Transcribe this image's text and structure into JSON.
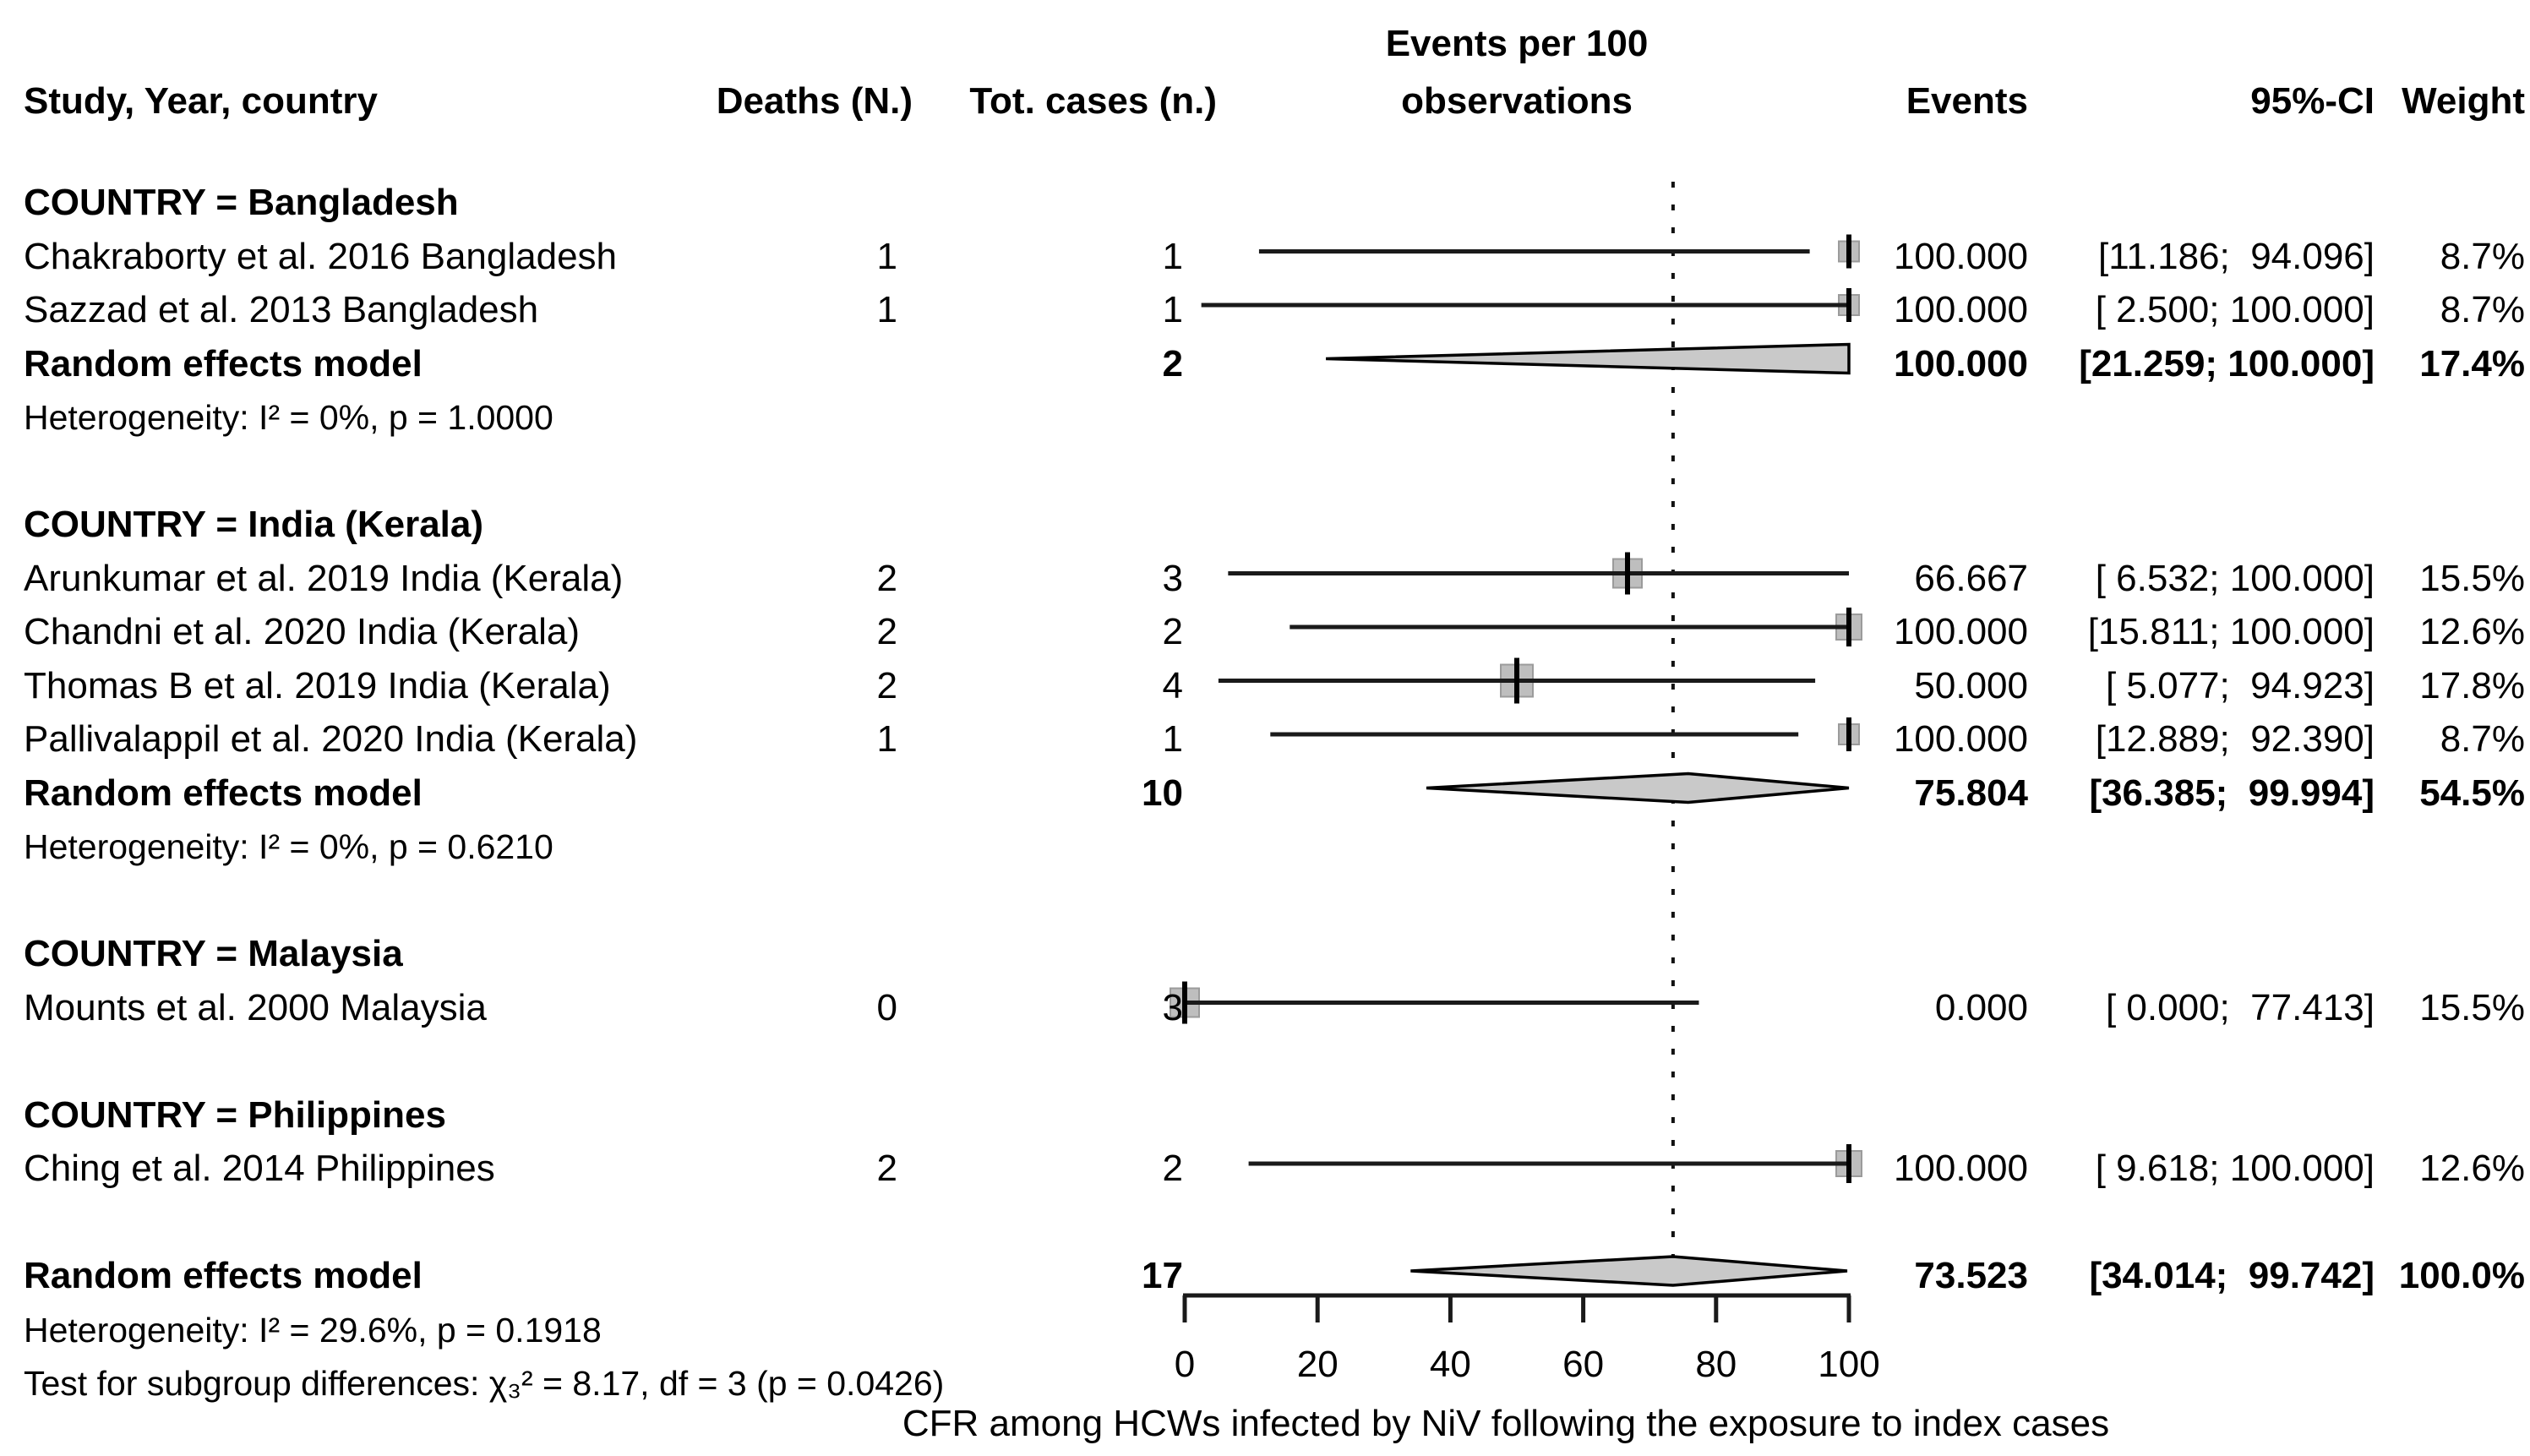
{
  "columns": {
    "study": "Study, Year, country",
    "deaths": "Deaths (N.)",
    "total": "Tot. cases (n.)",
    "plot_line1": "Events per 100",
    "plot_line2": "observations",
    "events": "Events",
    "ci": "95%-CI",
    "weight": "Weight"
  },
  "chart_data": {
    "type": "forest",
    "xlabel": "CFR among HCWs infected by NiV following the exposure to index cases",
    "x_axis": {
      "ticks": [
        0,
        20,
        40,
        60,
        80,
        100
      ],
      "range": [
        0,
        100
      ]
    },
    "reference_line": 73.523,
    "colors": {
      "marker_fill": "#bebebe",
      "diamond_fill": "#c9c9c9",
      "line": "#1a1a1a"
    },
    "rows": [
      {
        "kind": "group",
        "label": "COUNTRY = Bangladesh"
      },
      {
        "kind": "study",
        "label": "Chakraborty et al. 2016 Bangladesh",
        "deaths": "1",
        "total": "1",
        "est": 100.0,
        "lo": 11.186,
        "hi": 94.096,
        "events": "100.000",
        "ci": "[11.186;  94.096]",
        "weight": "8.7%",
        "marker": 24
      },
      {
        "kind": "study",
        "label": "Sazzad et al. 2013 Bangladesh",
        "deaths": "1",
        "total": "1",
        "est": 100.0,
        "lo": 2.5,
        "hi": 100.0,
        "events": "100.000",
        "ci": "[ 2.500; 100.000]",
        "weight": "8.7%",
        "marker": 24
      },
      {
        "kind": "summary",
        "label": "Random effects model",
        "total": "2",
        "est": 100.0,
        "lo": 21.259,
        "hi": 100.0,
        "events": "100.000",
        "ci": "[21.259; 100.000]",
        "weight": "17.4%"
      },
      {
        "kind": "note",
        "label": "Heterogeneity: I² = 0%, p = 1.0000"
      },
      {
        "kind": "spacer"
      },
      {
        "kind": "group",
        "label": "COUNTRY = India (Kerala)"
      },
      {
        "kind": "study",
        "label": "Arunkumar et al. 2019 India (Kerala)",
        "deaths": "2",
        "total": "3",
        "est": 66.667,
        "lo": 6.532,
        "hi": 100.0,
        "events": "66.667",
        "ci": "[ 6.532; 100.000]",
        "weight": "15.5%",
        "marker": 34
      },
      {
        "kind": "study",
        "label": "Chandni et al. 2020 India (Kerala)",
        "deaths": "2",
        "total": "2",
        "est": 100.0,
        "lo": 15.811,
        "hi": 100.0,
        "events": "100.000",
        "ci": "[15.811; 100.000]",
        "weight": "12.6%",
        "marker": 30
      },
      {
        "kind": "study",
        "label": "Thomas B et al. 2019 India (Kerala)",
        "deaths": "2",
        "total": "4",
        "est": 50.0,
        "lo": 5.077,
        "hi": 94.923,
        "events": "50.000",
        "ci": "[ 5.077;  94.923]",
        "weight": "17.8%",
        "marker": 38
      },
      {
        "kind": "study",
        "label": "Pallivalappil et al. 2020 India (Kerala)",
        "deaths": "1",
        "total": "1",
        "est": 100.0,
        "lo": 12.889,
        "hi": 92.39,
        "events": "100.000",
        "ci": "[12.889;  92.390]",
        "weight": "8.7%",
        "marker": 24
      },
      {
        "kind": "summary",
        "label": "Random effects model",
        "total": "10",
        "est": 75.804,
        "lo": 36.385,
        "hi": 99.994,
        "events": "75.804",
        "ci": "[36.385;  99.994]",
        "weight": "54.5%"
      },
      {
        "kind": "note",
        "label": "Heterogeneity: I² = 0%, p = 0.6210"
      },
      {
        "kind": "spacer"
      },
      {
        "kind": "group",
        "label": "COUNTRY = Malaysia"
      },
      {
        "kind": "study",
        "label": "Mounts et al. 2000 Malaysia",
        "deaths": "0",
        "total": "3",
        "est": 0.0,
        "lo": 0.0,
        "hi": 77.413,
        "events": "0.000",
        "ci": "[ 0.000;  77.413]",
        "weight": "15.5%",
        "marker": 34
      },
      {
        "kind": "spacer"
      },
      {
        "kind": "group",
        "label": "COUNTRY = Philippines"
      },
      {
        "kind": "study",
        "label": "Ching et al. 2014 Philippines",
        "deaths": "2",
        "total": "2",
        "est": 100.0,
        "lo": 9.618,
        "hi": 100.0,
        "events": "100.000",
        "ci": "[ 9.618; 100.000]",
        "weight": "12.6%",
        "marker": 30
      },
      {
        "kind": "spacer"
      },
      {
        "kind": "summary",
        "label": "Random effects model",
        "total": "17",
        "est": 73.523,
        "lo": 34.014,
        "hi": 99.742,
        "events": "73.523",
        "ci": "[34.014;  99.742]",
        "weight": "100.0%"
      },
      {
        "kind": "note",
        "label": "Heterogeneity: I² = 29.6%, p = 0.1918"
      },
      {
        "kind": "note",
        "label": "Test for subgroup differences: χ₃² = 8.17, df = 3 (p = 0.0426)"
      }
    ]
  }
}
